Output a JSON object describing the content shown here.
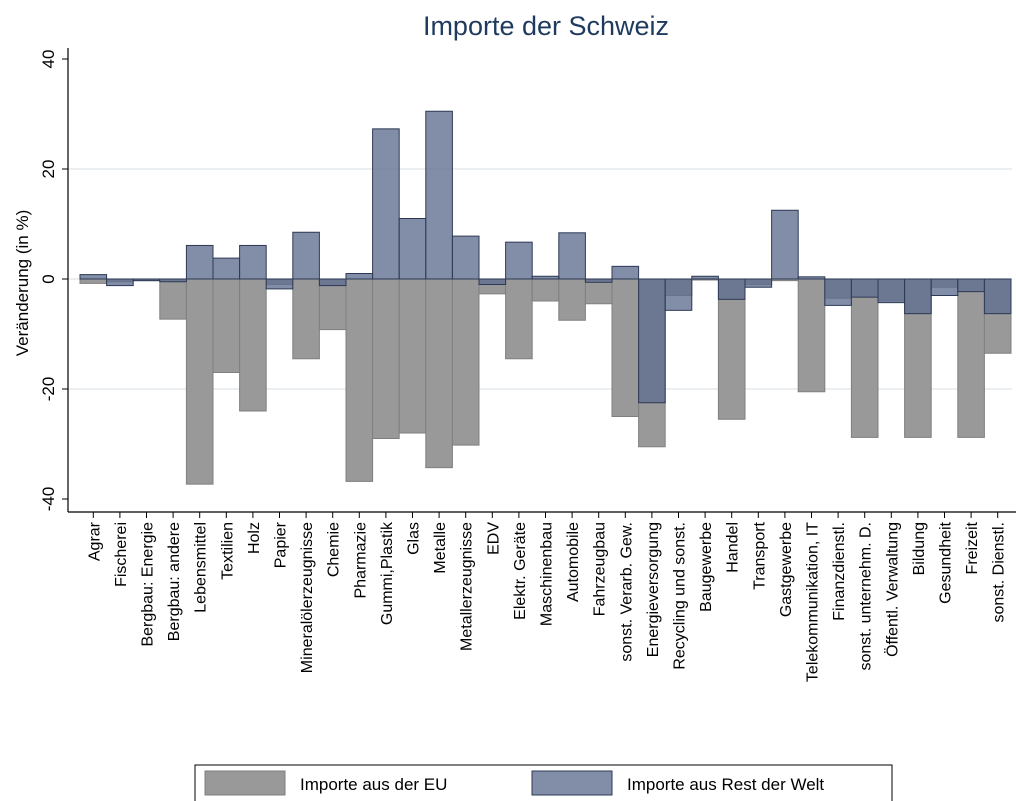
{
  "chart_data": {
    "type": "bar",
    "title": "Importe der Schweiz",
    "ylabel": "Veränderung (in %)",
    "xlabel": "",
    "ylim": [
      -43,
      42
    ],
    "yticks": [
      40,
      20,
      0,
      -20,
      -40
    ],
    "grid": true,
    "legend_position": "bottom",
    "categories": [
      "Agrar",
      "Fischerei",
      "Bergbau: Energie",
      "Bergbau: andere",
      "Lebensmittel",
      "Textilien",
      "Holz",
      "Papier",
      "Mineralölerzeugnisse",
      "Chemie",
      "Pharmazie",
      "Gummi,Plastik",
      "Glas",
      "Metalle",
      "Metallerzeugnisse",
      "EDV",
      "Elektr. Geräte",
      "Maschinenbau",
      "Automobile",
      "Fahrzeugbau",
      "sonst. Verarb. Gew.",
      "Energieversorgung",
      "Recycling und sonst.",
      "Baugewerbe",
      "Handel",
      "Transport",
      "Gastgewerbe",
      "Telekommunikation, IT",
      "Finanzdienstl.",
      "sonst. unternehm. D.",
      "Öffentl. Verwaltung",
      "Bildung",
      "Gesundheit",
      "Freizeit",
      "sonst. Dienstl."
    ],
    "series": [
      {
        "name": "Importe aus der EU",
        "color": "#999999",
        "values": [
          -0.8,
          -0.5,
          -0.3,
          -7.3,
          -37.3,
          -17.0,
          -24.0,
          -1.0,
          -14.5,
          -9.2,
          -36.8,
          -29.0,
          -28.0,
          -34.3,
          -30.2,
          -2.7,
          -14.5,
          -4.0,
          -7.5,
          -4.5,
          -25.0,
          -30.5,
          -3.0,
          0.0,
          -25.5,
          -1.0,
          -0.3,
          -20.5,
          -3.5,
          -28.8,
          -4.0,
          -28.8,
          -1.5,
          -28.8,
          -13.5
        ]
      },
      {
        "name": "Importe aus Rest der Welt",
        "color": "#6d7b99",
        "values": [
          0.8,
          -1.2,
          -0.3,
          -0.5,
          6.1,
          3.8,
          6.1,
          -1.8,
          8.5,
          -1.2,
          1.0,
          27.3,
          11.0,
          30.5,
          7.8,
          -1.0,
          6.7,
          0.5,
          8.4,
          -0.6,
          2.3,
          -22.5,
          -5.7,
          0.5,
          -3.7,
          -1.5,
          12.5,
          0.4,
          -4.8,
          -3.3,
          -4.3,
          -6.3,
          -3.0,
          -2.3,
          -6.3
        ]
      }
    ]
  }
}
